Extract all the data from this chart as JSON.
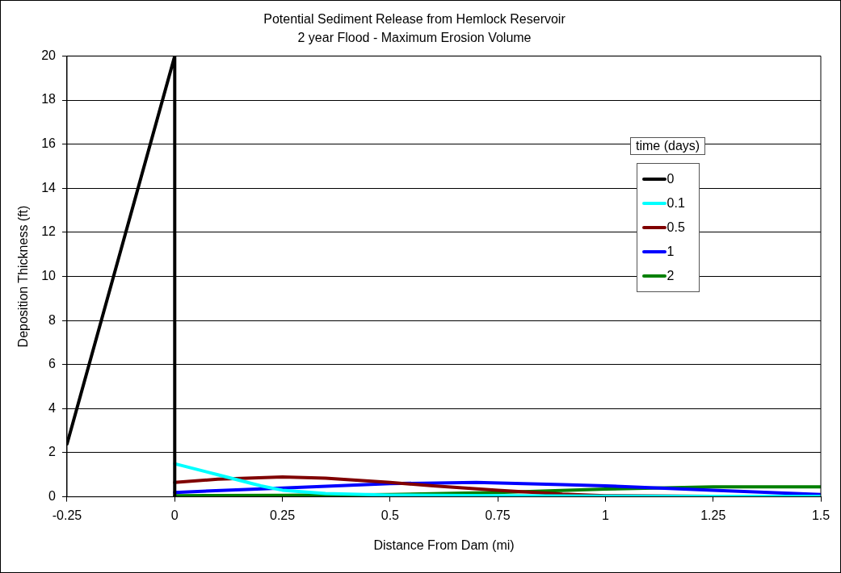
{
  "chart_data": {
    "type": "line",
    "title": "Potential Sediment Release from Hemlock Reservoir",
    "subtitle": "2 year Flood - Maximum Erosion Volume",
    "xlabel": "Distance From Dam (mi)",
    "ylabel": "Deposition Thickness (ft)",
    "legend_title": "time (days)",
    "xlim": [
      -0.25,
      1.5
    ],
    "xticks": [
      -0.25,
      0,
      0.25,
      0.5,
      0.75,
      1,
      1.25,
      1.5
    ],
    "ylim": [
      0,
      20
    ],
    "yticks": [
      0,
      2,
      4,
      6,
      8,
      10,
      12,
      14,
      16,
      18,
      20
    ],
    "grid": "y",
    "legend": "right",
    "marker": "none",
    "series": [
      {
        "name": "0",
        "color": "#000000",
        "x": [
          -0.25,
          0,
          0
        ],
        "values": [
          2.4,
          20,
          0
        ]
      },
      {
        "name": "0.1",
        "color": "#00ffff",
        "x": [
          0,
          0.1,
          0.2,
          0.25,
          0.35,
          0.5,
          0.75,
          1,
          1.25,
          1.5
        ],
        "values": [
          1.5,
          1.0,
          0.5,
          0.3,
          0.15,
          0.08,
          0.05,
          0.03,
          0.02,
          0.02
        ]
      },
      {
        "name": "0.5",
        "color": "#800000",
        "x": [
          0,
          0.1,
          0.25,
          0.35,
          0.5,
          0.6,
          0.75,
          0.9,
          1,
          1.25,
          1.5
        ],
        "values": [
          0.65,
          0.8,
          0.9,
          0.85,
          0.65,
          0.5,
          0.3,
          0.12,
          0.05,
          0.02,
          0.01
        ]
      },
      {
        "name": "1",
        "color": "#0000ff",
        "x": [
          0,
          0.25,
          0.5,
          0.7,
          0.9,
          1,
          1.25,
          1.5
        ],
        "values": [
          0.2,
          0.4,
          0.6,
          0.65,
          0.55,
          0.5,
          0.3,
          0.1
        ]
      },
      {
        "name": "2",
        "color": "#008000",
        "x": [
          0,
          0.25,
          0.5,
          0.75,
          1,
          1.25,
          1.5
        ],
        "values": [
          0.05,
          0.07,
          0.1,
          0.2,
          0.35,
          0.45,
          0.45
        ]
      }
    ]
  }
}
